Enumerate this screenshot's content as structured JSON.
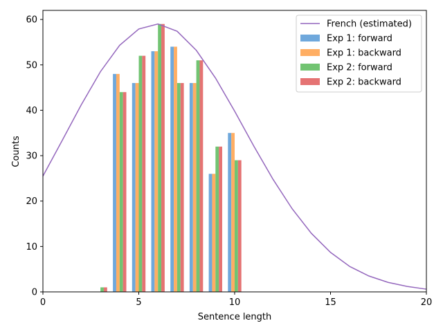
{
  "chart_data": {
    "type": "bar",
    "xlabel": "Sentence length",
    "ylabel": "Counts",
    "xlim": [
      0,
      20
    ],
    "ylim": [
      0,
      62
    ],
    "xticks": [
      0,
      5,
      10,
      15,
      20
    ],
    "yticks": [
      0,
      10,
      20,
      30,
      40,
      50,
      60
    ],
    "grid": false,
    "legend_position": "top-right",
    "bar_x": [
      3,
      4,
      5,
      6,
      7,
      8,
      9,
      10
    ],
    "series": [
      {
        "name": "Exp 1: forward",
        "color": "#6fa8dc",
        "values": [
          0,
          48,
          46,
          53,
          54,
          46,
          26,
          35
        ]
      },
      {
        "name": "Exp 1: backward",
        "color": "#ffae63",
        "values": [
          0,
          48,
          46,
          53,
          54,
          46,
          26,
          35
        ]
      },
      {
        "name": "Exp 2: forward",
        "color": "#72c472",
        "values": [
          1,
          44,
          52,
          59,
          46,
          51,
          32,
          29
        ]
      },
      {
        "name": "Exp 2: backward",
        "color": "#e57373",
        "values": [
          1,
          44,
          52,
          59,
          46,
          51,
          32,
          29
        ]
      }
    ],
    "curve": {
      "name": "French (estimated)",
      "type": "line",
      "color": "#9467bd",
      "x": [
        0,
        1,
        2,
        3,
        4,
        5,
        6,
        7,
        8,
        9,
        10,
        11,
        12,
        13,
        14,
        15,
        16,
        17,
        18,
        19,
        20
      ],
      "y": [
        25.5,
        33.3,
        41.2,
        48.5,
        54.3,
        57.9,
        59.0,
        57.4,
        53.2,
        47.1,
        39.8,
        32.1,
        24.8,
        18.3,
        12.9,
        8.7,
        5.6,
        3.5,
        2.1,
        1.2,
        0.6
      ]
    }
  }
}
